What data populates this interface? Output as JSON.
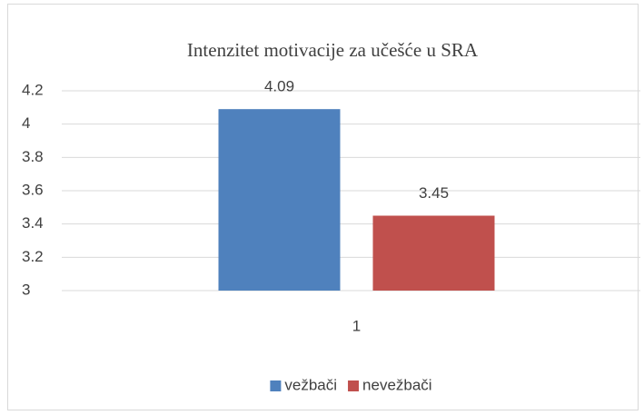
{
  "chart_data": {
    "type": "bar",
    "title": "Intenzitet motivacije za učešće u SRA",
    "categories": [
      "1"
    ],
    "series": [
      {
        "name": "vežbači",
        "color": "#4f81bd",
        "values": [
          4.09
        ]
      },
      {
        "name": "nevežbači",
        "color": "#c0504d",
        "values": [
          3.45
        ]
      }
    ],
    "ylim": [
      3,
      4.2
    ],
    "yticks": [
      3,
      3.2,
      3.4,
      3.6,
      3.8,
      4,
      4.2
    ],
    "grid": true,
    "legend": "bottom"
  }
}
